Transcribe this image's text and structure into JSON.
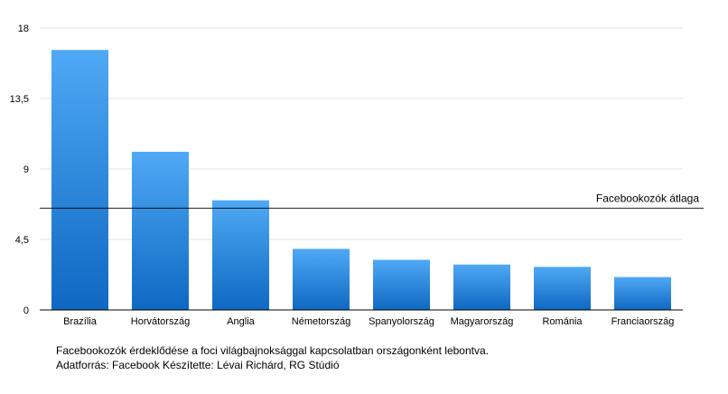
{
  "chart_data": {
    "type": "bar",
    "categories": [
      "Brazília",
      "Horvátország",
      "Anglia",
      "Németország",
      "Spanyolország",
      "Magyarország",
      "Románia",
      "Franciaország"
    ],
    "values": [
      16.6,
      10.1,
      7.0,
      3.9,
      3.2,
      2.9,
      2.75,
      2.1
    ],
    "y_ticks": [
      "0",
      "4,5",
      "9",
      "13,5",
      "18"
    ],
    "y_tick_values": [
      0,
      4.5,
      9,
      13.5,
      18
    ],
    "ylim": [
      0,
      18
    ],
    "grid": true,
    "bar_color_top": "#4fa9f5",
    "bar_color_bottom": "#0f68c2",
    "reference_line": {
      "label": "Facebookozók átlaga",
      "value": 6.5
    }
  },
  "caption": {
    "line1": "Facebookozók érdeklődése a foci világbajnoksággal kapcsolatban országonként lebontva.",
    "line2": "Adatforrás: Facebook Készítette: Lévai Richárd, RG Stúdió"
  }
}
